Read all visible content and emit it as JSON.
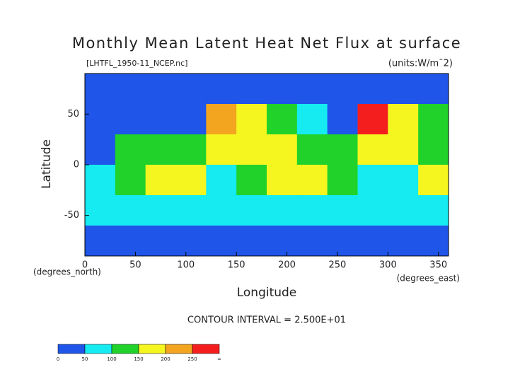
{
  "chart_data": {
    "type": "heatmap",
    "title": "Monthly Mean Latent Heat Net Flux at surface",
    "subtitle": "[LHTFL_1950-11_NCEP.nc]",
    "units": "(units:W/m¯2)",
    "x_label": "Longitude",
    "x_unit": "(degrees_east)",
    "y_label": "Latitude",
    "y_unit": "(degrees_north)",
    "note": "CONTOUR INTERVAL = 2.500E+01",
    "xlim": [
      0,
      360
    ],
    "xticks": [
      0,
      50,
      100,
      150,
      200,
      250,
      300,
      350
    ],
    "ylim": [
      -90,
      90
    ],
    "yticks": [
      -50,
      0,
      50
    ],
    "x": [
      15,
      45,
      75,
      105,
      135,
      165,
      195,
      225,
      255,
      285,
      315,
      345
    ],
    "y": [
      75,
      45,
      15,
      -15,
      -45,
      -75
    ],
    "values": [
      [
        10,
        10,
        10,
        10,
        10,
        10,
        10,
        10,
        10,
        10,
        25,
        40
      ],
      [
        30,
        40,
        20,
        20,
        200,
        150,
        100,
        60,
        30,
        250,
        150,
        100
      ],
      [
        30,
        125,
        125,
        100,
        175,
        150,
        150,
        125,
        100,
        150,
        175,
        125
      ],
      [
        75,
        125,
        175,
        150,
        50,
        125,
        150,
        150,
        125,
        75,
        75,
        150
      ],
      [
        75,
        75,
        60,
        60,
        75,
        60,
        50,
        50,
        50,
        50,
        75,
        60
      ],
      [
        10,
        10,
        10,
        10,
        10,
        10,
        10,
        10,
        10,
        10,
        10,
        10
      ]
    ],
    "colorbar": {
      "bounds": [
        0,
        50,
        100,
        150,
        200,
        250
      ],
      "top_label": "∞",
      "colors": [
        "#1f55e8",
        "#15ebf0",
        "#20d22a",
        "#f5f520",
        "#f3a520",
        "#f51e1e"
      ]
    }
  }
}
